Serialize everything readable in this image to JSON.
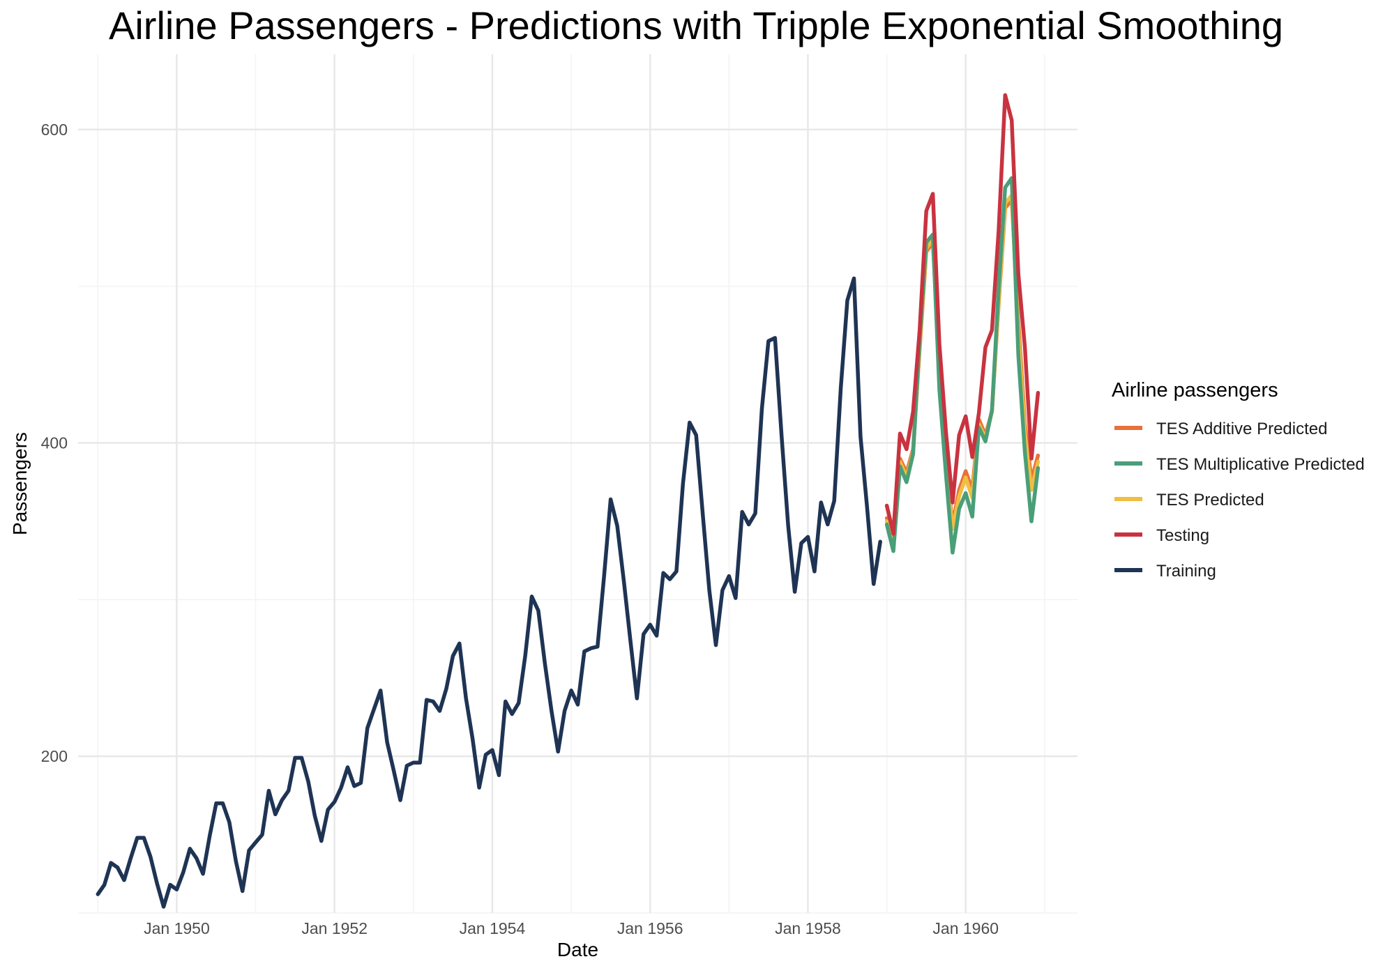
{
  "chart_data": {
    "type": "line",
    "title": "Airline Passengers - Predictions with Tripple Exponential Smoothing",
    "xlabel": "Date",
    "ylabel": "Passengers",
    "x_range": [
      "1948-10-01",
      "1961-06-01"
    ],
    "ylim": [
      100,
      648
    ],
    "grid": true,
    "x_ticks": [
      {
        "date": "1950-01-01",
        "label": "Jan 1950"
      },
      {
        "date": "1952-01-01",
        "label": "Jan 1952"
      },
      {
        "date": "1954-01-01",
        "label": "Jan 1954"
      },
      {
        "date": "1956-01-01",
        "label": "Jan 1956"
      },
      {
        "date": "1958-01-01",
        "label": "Jan 1958"
      },
      {
        "date": "1960-01-01",
        "label": "Jan 1960"
      }
    ],
    "y_ticks": [
      200,
      400,
      600
    ],
    "legend": {
      "title": "Airline passengers",
      "position": "right"
    },
    "training_start": "1949-01",
    "testing_start": "1959-01",
    "series": [
      {
        "name": "TES Additive Predicted",
        "color": "#E8713A",
        "start": "1959-01",
        "values": [
          352,
          345,
          390,
          381,
          396,
          460,
          522,
          528,
          452,
          388,
          348,
          370,
          382,
          370,
          415,
          405,
          420,
          488,
          550,
          555,
          478,
          412,
          376,
          392
        ]
      },
      {
        "name": "TES Multiplicative Predicted",
        "color": "#4A9E78",
        "start": "1959-01",
        "values": [
          348,
          331,
          385,
          375,
          393,
          466,
          528,
          533,
          434,
          380,
          330,
          358,
          368,
          353,
          410,
          401,
          421,
          498,
          563,
          569,
          456,
          394,
          350,
          384
        ]
      },
      {
        "name": "TES Predicted",
        "color": "#F0BE42",
        "start": "1959-01",
        "values": [
          350,
          340,
          388,
          378,
          394,
          462,
          524,
          530,
          448,
          385,
          345,
          366,
          378,
          365,
          412,
          403,
          420,
          490,
          553,
          558,
          470,
          406,
          370,
          388
        ]
      },
      {
        "name": "Testing",
        "color": "#C8333F",
        "start": "1959-01",
        "values": [
          360,
          342,
          406,
          396,
          420,
          472,
          548,
          559,
          463,
          407,
          362,
          405,
          417,
          391,
          419,
          461,
          472,
          535,
          622,
          606,
          508,
          461,
          390,
          432
        ]
      },
      {
        "name": "Training",
        "color": "#1F3454",
        "start": "1949-01",
        "values": [
          112,
          118,
          132,
          129,
          121,
          135,
          148,
          148,
          136,
          119,
          104,
          118,
          115,
          126,
          141,
          135,
          125,
          149,
          170,
          170,
          158,
          133,
          114,
          140,
          145,
          150,
          178,
          163,
          172,
          178,
          199,
          199,
          184,
          162,
          146,
          166,
          171,
          180,
          193,
          181,
          183,
          218,
          230,
          242,
          209,
          191,
          172,
          194,
          196,
          196,
          236,
          235,
          229,
          243,
          264,
          272,
          237,
          211,
          180,
          201,
          204,
          188,
          235,
          227,
          234,
          264,
          302,
          293,
          259,
          229,
          203,
          229,
          242,
          233,
          267,
          269,
          270,
          315,
          364,
          347,
          312,
          274,
          237,
          278,
          284,
          277,
          317,
          313,
          318,
          374,
          413,
          405,
          355,
          306,
          271,
          306,
          315,
          301,
          356,
          348,
          355,
          422,
          465,
          467,
          404,
          347,
          305,
          336,
          340,
          318,
          362,
          348,
          363,
          435,
          491,
          505,
          404,
          359,
          310,
          337
        ]
      }
    ]
  }
}
